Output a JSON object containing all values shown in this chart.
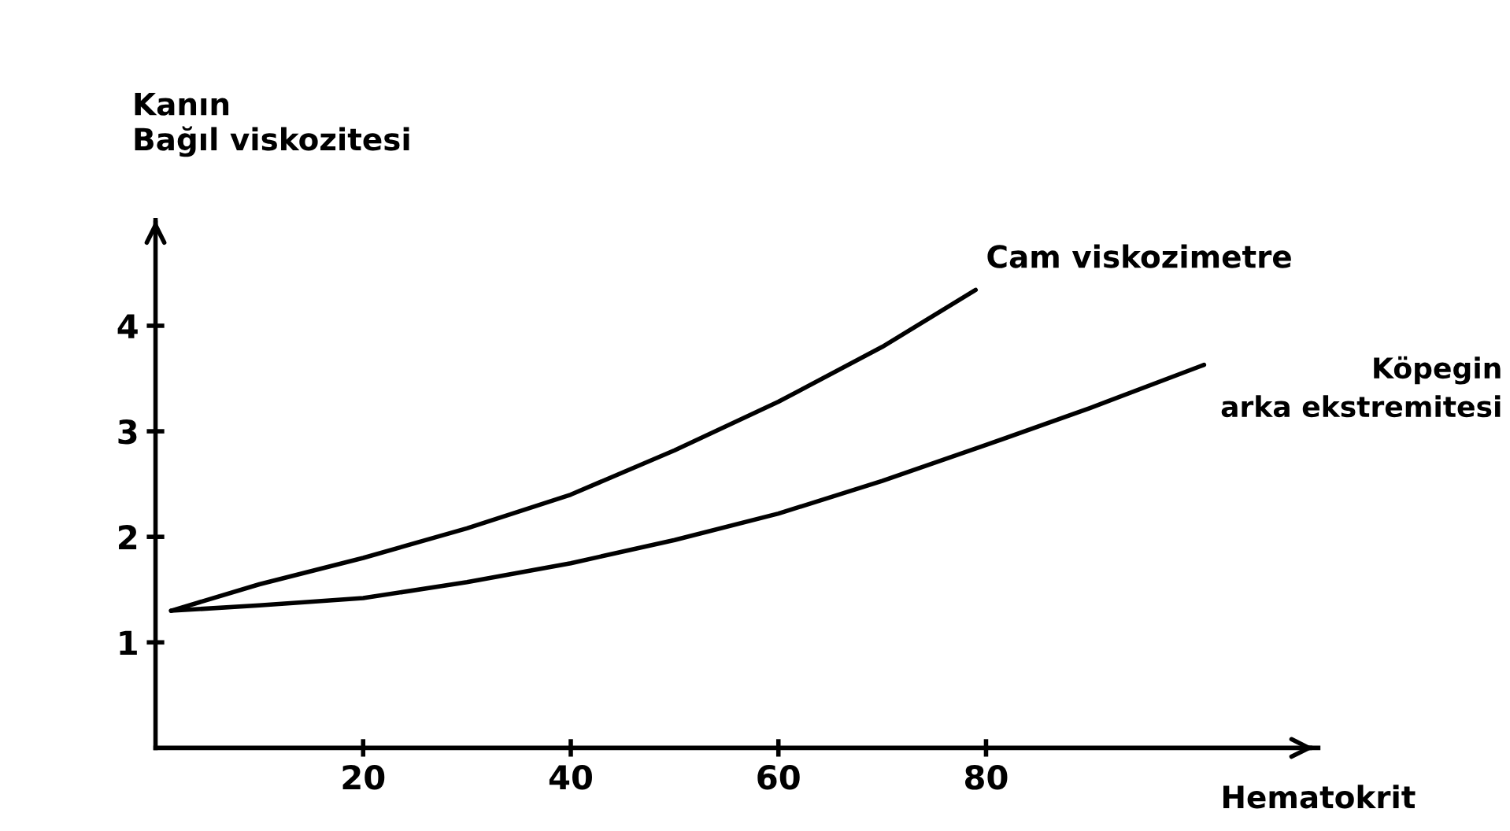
{
  "chart_data": {
    "type": "line",
    "ylabel": "Kanın\nBağıl viskozitesi",
    "xlabel": "Hematokrit",
    "xlim": [
      0,
      112
    ],
    "ylim": [
      0,
      5
    ],
    "xticks": [
      20,
      40,
      60,
      80
    ],
    "yticks": [
      1,
      2,
      3,
      4
    ],
    "series": [
      {
        "name": "Cam viskozimetre",
        "color": "#000000",
        "x": [
          1.5,
          10,
          20,
          30,
          40,
          50,
          60,
          70,
          79
        ],
        "values": [
          1.3,
          1.55,
          1.8,
          2.08,
          2.4,
          2.82,
          3.28,
          3.8,
          4.34
        ]
      },
      {
        "name": "Köpegin\narka ekstremitesi",
        "color": "#000000",
        "x": [
          1.5,
          10,
          20,
          30,
          40,
          50,
          60,
          70,
          80,
          90,
          101
        ],
        "values": [
          1.3,
          1.35,
          1.42,
          1.57,
          1.75,
          1.97,
          2.22,
          2.53,
          2.87,
          3.22,
          3.63
        ]
      }
    ]
  }
}
